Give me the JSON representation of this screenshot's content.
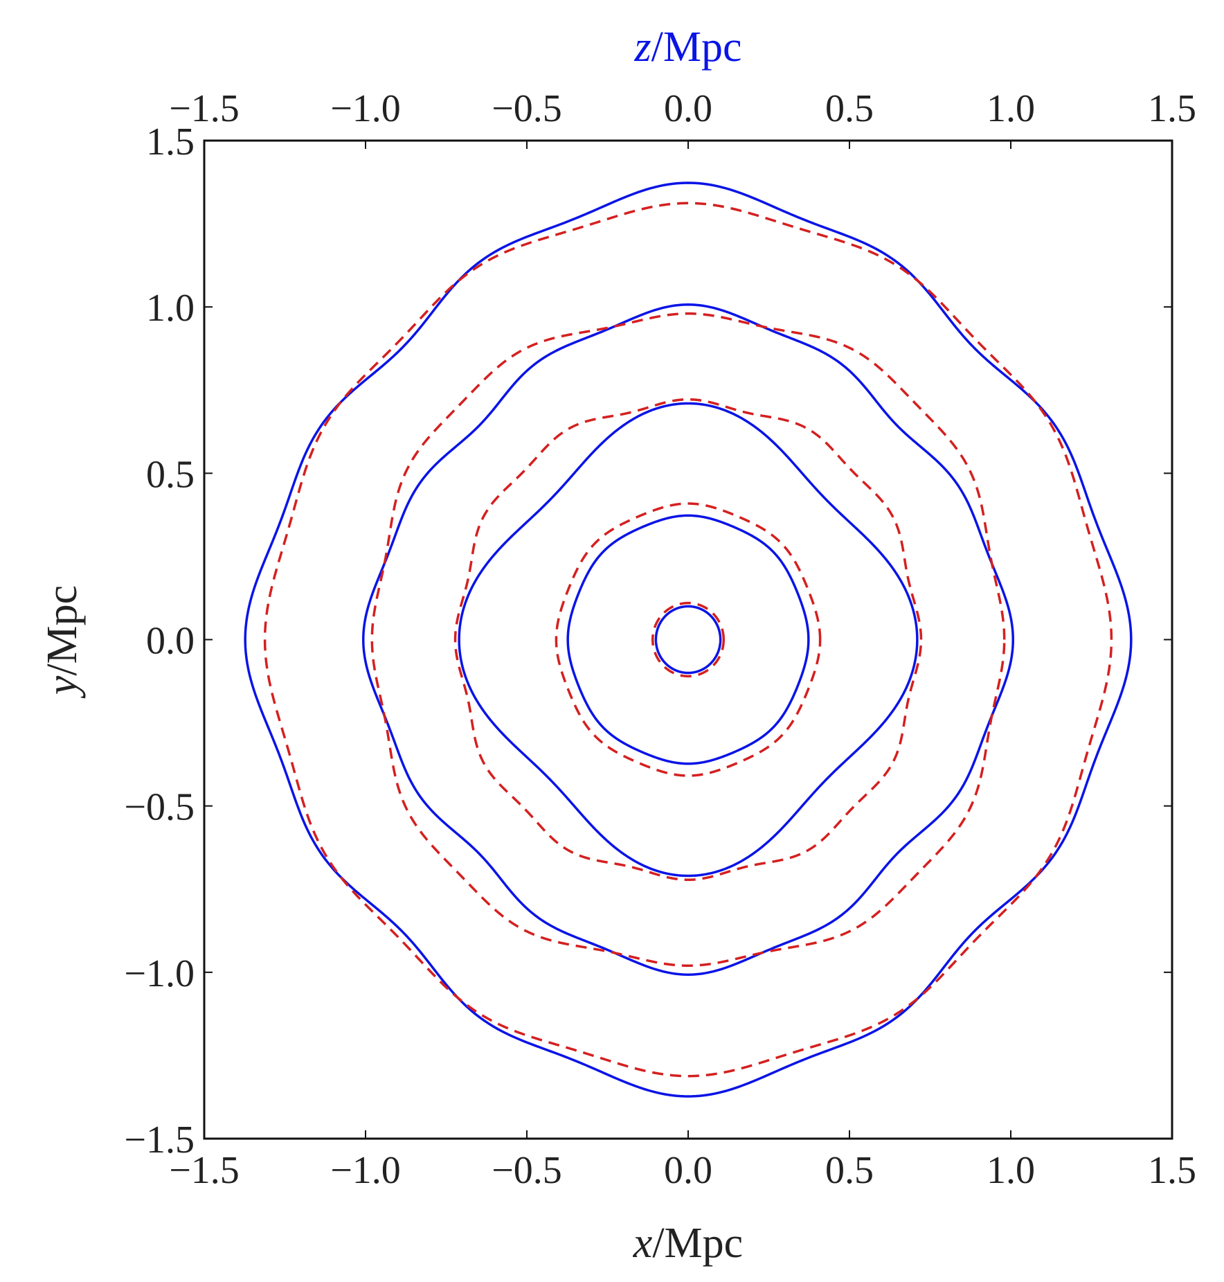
{
  "chart_data": {
    "type": "line",
    "xlabel": {
      "var": "x",
      "unit": "/Mpc"
    },
    "ylabel": {
      "var": "y",
      "unit": "/Mpc"
    },
    "top_label": {
      "var": "z",
      "unit": "/Mpc"
    },
    "xlim": [
      -1.5,
      1.5
    ],
    "ylim": [
      -1.5,
      1.5
    ],
    "ticks": [
      -1.5,
      -1.0,
      -0.5,
      0.0,
      0.5,
      1.0,
      1.5
    ],
    "tick_labels": [
      "−1.5",
      "−1.0",
      "−0.5",
      "0.0",
      "0.5",
      "1.0",
      "1.5"
    ],
    "grid": false,
    "colors": {
      "solid": "#0a14e6",
      "dashed": "#d42020",
      "axes": "#111111",
      "top_label": "#0a14e6"
    },
    "series": [
      {
        "style": "solid",
        "contours": [
          {
            "r0": 0.1,
            "amp": 0.0,
            "k": 0,
            "phase": 0
          },
          {
            "r0": 0.37,
            "amp": 0.003,
            "k": 8,
            "phase": 0
          },
          {
            "r0": 0.655,
            "amp": 0.055,
            "k": 4,
            "phase": 0
          },
          {
            "r0": 0.96,
            "amp": 0.035,
            "k": 4,
            "phase": 0,
            "amp2": 0.012,
            "k2": 12
          },
          {
            "r0": 1.31,
            "amp": 0.045,
            "k": 4,
            "phase": 0,
            "amp2": 0.018,
            "k2": 12
          }
        ]
      },
      {
        "style": "dashed",
        "contours": [
          {
            "r0": 0.11,
            "amp": 0.0,
            "k": 0,
            "phase": 0
          },
          {
            "r0": 0.405,
            "amp": 0.004,
            "k": 8,
            "phase": 0
          },
          {
            "r0": 0.72,
            "amp": -0.008,
            "k": 4,
            "phase": 0,
            "amp2": 0.01,
            "k2": 12
          },
          {
            "r0": 0.99,
            "amp": -0.02,
            "k": 4,
            "phase": 0,
            "amp2": 0.01,
            "k2": 12
          },
          {
            "r0": 1.29,
            "amp": 0.01,
            "k": 4,
            "phase": 0,
            "amp2": 0.012,
            "k2": 12
          }
        ]
      }
    ]
  }
}
